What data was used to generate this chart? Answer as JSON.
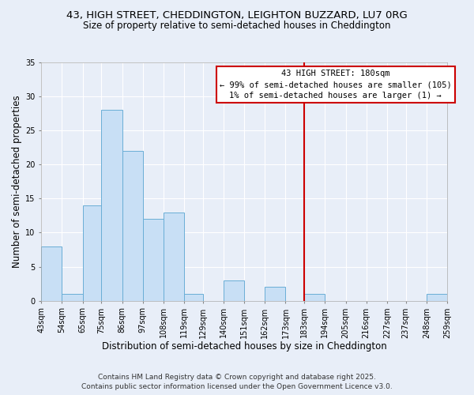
{
  "title": "43, HIGH STREET, CHEDDINGTON, LEIGHTON BUZZARD, LU7 0RG",
  "subtitle": "Size of property relative to semi-detached houses in Cheddington",
  "xlabel": "Distribution of semi-detached houses by size in Cheddington",
  "ylabel": "Number of semi-detached properties",
  "bin_edges": [
    43,
    54,
    65,
    75,
    86,
    97,
    108,
    119,
    129,
    140,
    151,
    162,
    173,
    183,
    194,
    205,
    216,
    227,
    237,
    248,
    259
  ],
  "bar_heights": [
    8,
    1,
    14,
    28,
    22,
    12,
    13,
    1,
    0,
    3,
    0,
    2,
    0,
    1,
    0,
    0,
    0,
    0,
    0,
    1
  ],
  "bar_color": "#c8dff5",
  "bar_edgecolor": "#6aaed6",
  "vline_x": 183,
  "vline_color": "#cc0000",
  "ylim": [
    0,
    35
  ],
  "yticks": [
    0,
    5,
    10,
    15,
    20,
    25,
    30,
    35
  ],
  "tick_labels": [
    "43sqm",
    "54sqm",
    "65sqm",
    "75sqm",
    "86sqm",
    "97sqm",
    "108sqm",
    "119sqm",
    "129sqm",
    "140sqm",
    "151sqm",
    "162sqm",
    "173sqm",
    "183sqm",
    "194sqm",
    "205sqm",
    "216sqm",
    "227sqm",
    "237sqm",
    "248sqm",
    "259sqm"
  ],
  "annotation_title": "43 HIGH STREET: 180sqm",
  "annotation_line1": "← 99% of semi-detached houses are smaller (105)",
  "annotation_line2": "1% of semi-detached houses are larger (1) →",
  "annotation_box_color": "#ffffff",
  "annotation_box_edgecolor": "#cc0000",
  "footer_line1": "Contains HM Land Registry data © Crown copyright and database right 2025.",
  "footer_line2": "Contains public sector information licensed under the Open Government Licence v3.0.",
  "background_color": "#e8eef8",
  "grid_color": "#ffffff",
  "title_fontsize": 9.5,
  "subtitle_fontsize": 8.5,
  "axis_label_fontsize": 8.5,
  "tick_fontsize": 7,
  "annotation_fontsize": 7.5,
  "footer_fontsize": 6.5
}
